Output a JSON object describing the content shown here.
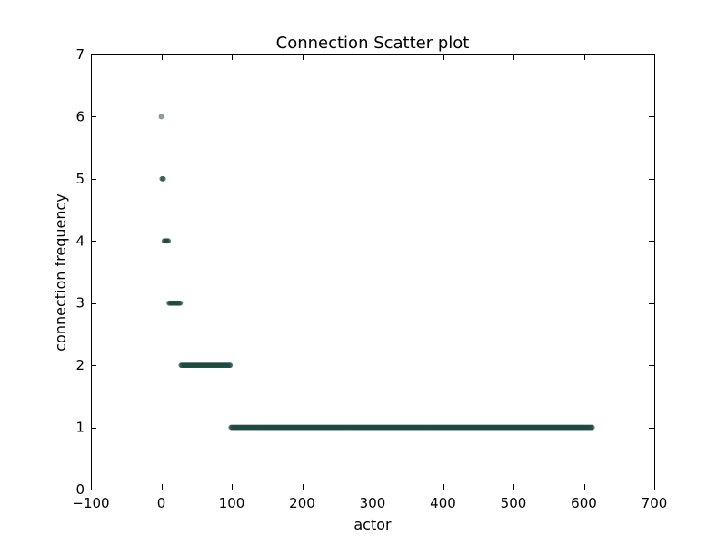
{
  "chart_data": {
    "type": "scatter",
    "title": "Connection Scatter plot",
    "xlabel": "actor",
    "ylabel": "connection frequency",
    "xlim": [
      -100,
      700
    ],
    "ylim": [
      0,
      7
    ],
    "xticks": [
      -100,
      0,
      100,
      200,
      300,
      400,
      500,
      600,
      700
    ],
    "yticks": [
      0,
      1,
      2,
      3,
      4,
      5,
      6,
      7
    ],
    "xtick_labels": [
      "−100",
      "0",
      "100",
      "200",
      "300",
      "400",
      "500",
      "600",
      "700"
    ],
    "ytick_labels": [
      "0",
      "1",
      "2",
      "3",
      "4",
      "5",
      "6",
      "7"
    ],
    "grid": false,
    "marker_color": "#1f4a40",
    "marker_alpha": 0.5,
    "groups": [
      {
        "y": 6,
        "x_start": 0,
        "x_end": 0
      },
      {
        "y": 5,
        "x_start": 1,
        "x_end": 3
      },
      {
        "y": 4,
        "x_start": 4,
        "x_end": 10
      },
      {
        "y": 3,
        "x_start": 11,
        "x_end": 27
      },
      {
        "y": 2,
        "x_start": 28,
        "x_end": 98
      },
      {
        "y": 1,
        "x_start": 99,
        "x_end": 612
      }
    ]
  }
}
